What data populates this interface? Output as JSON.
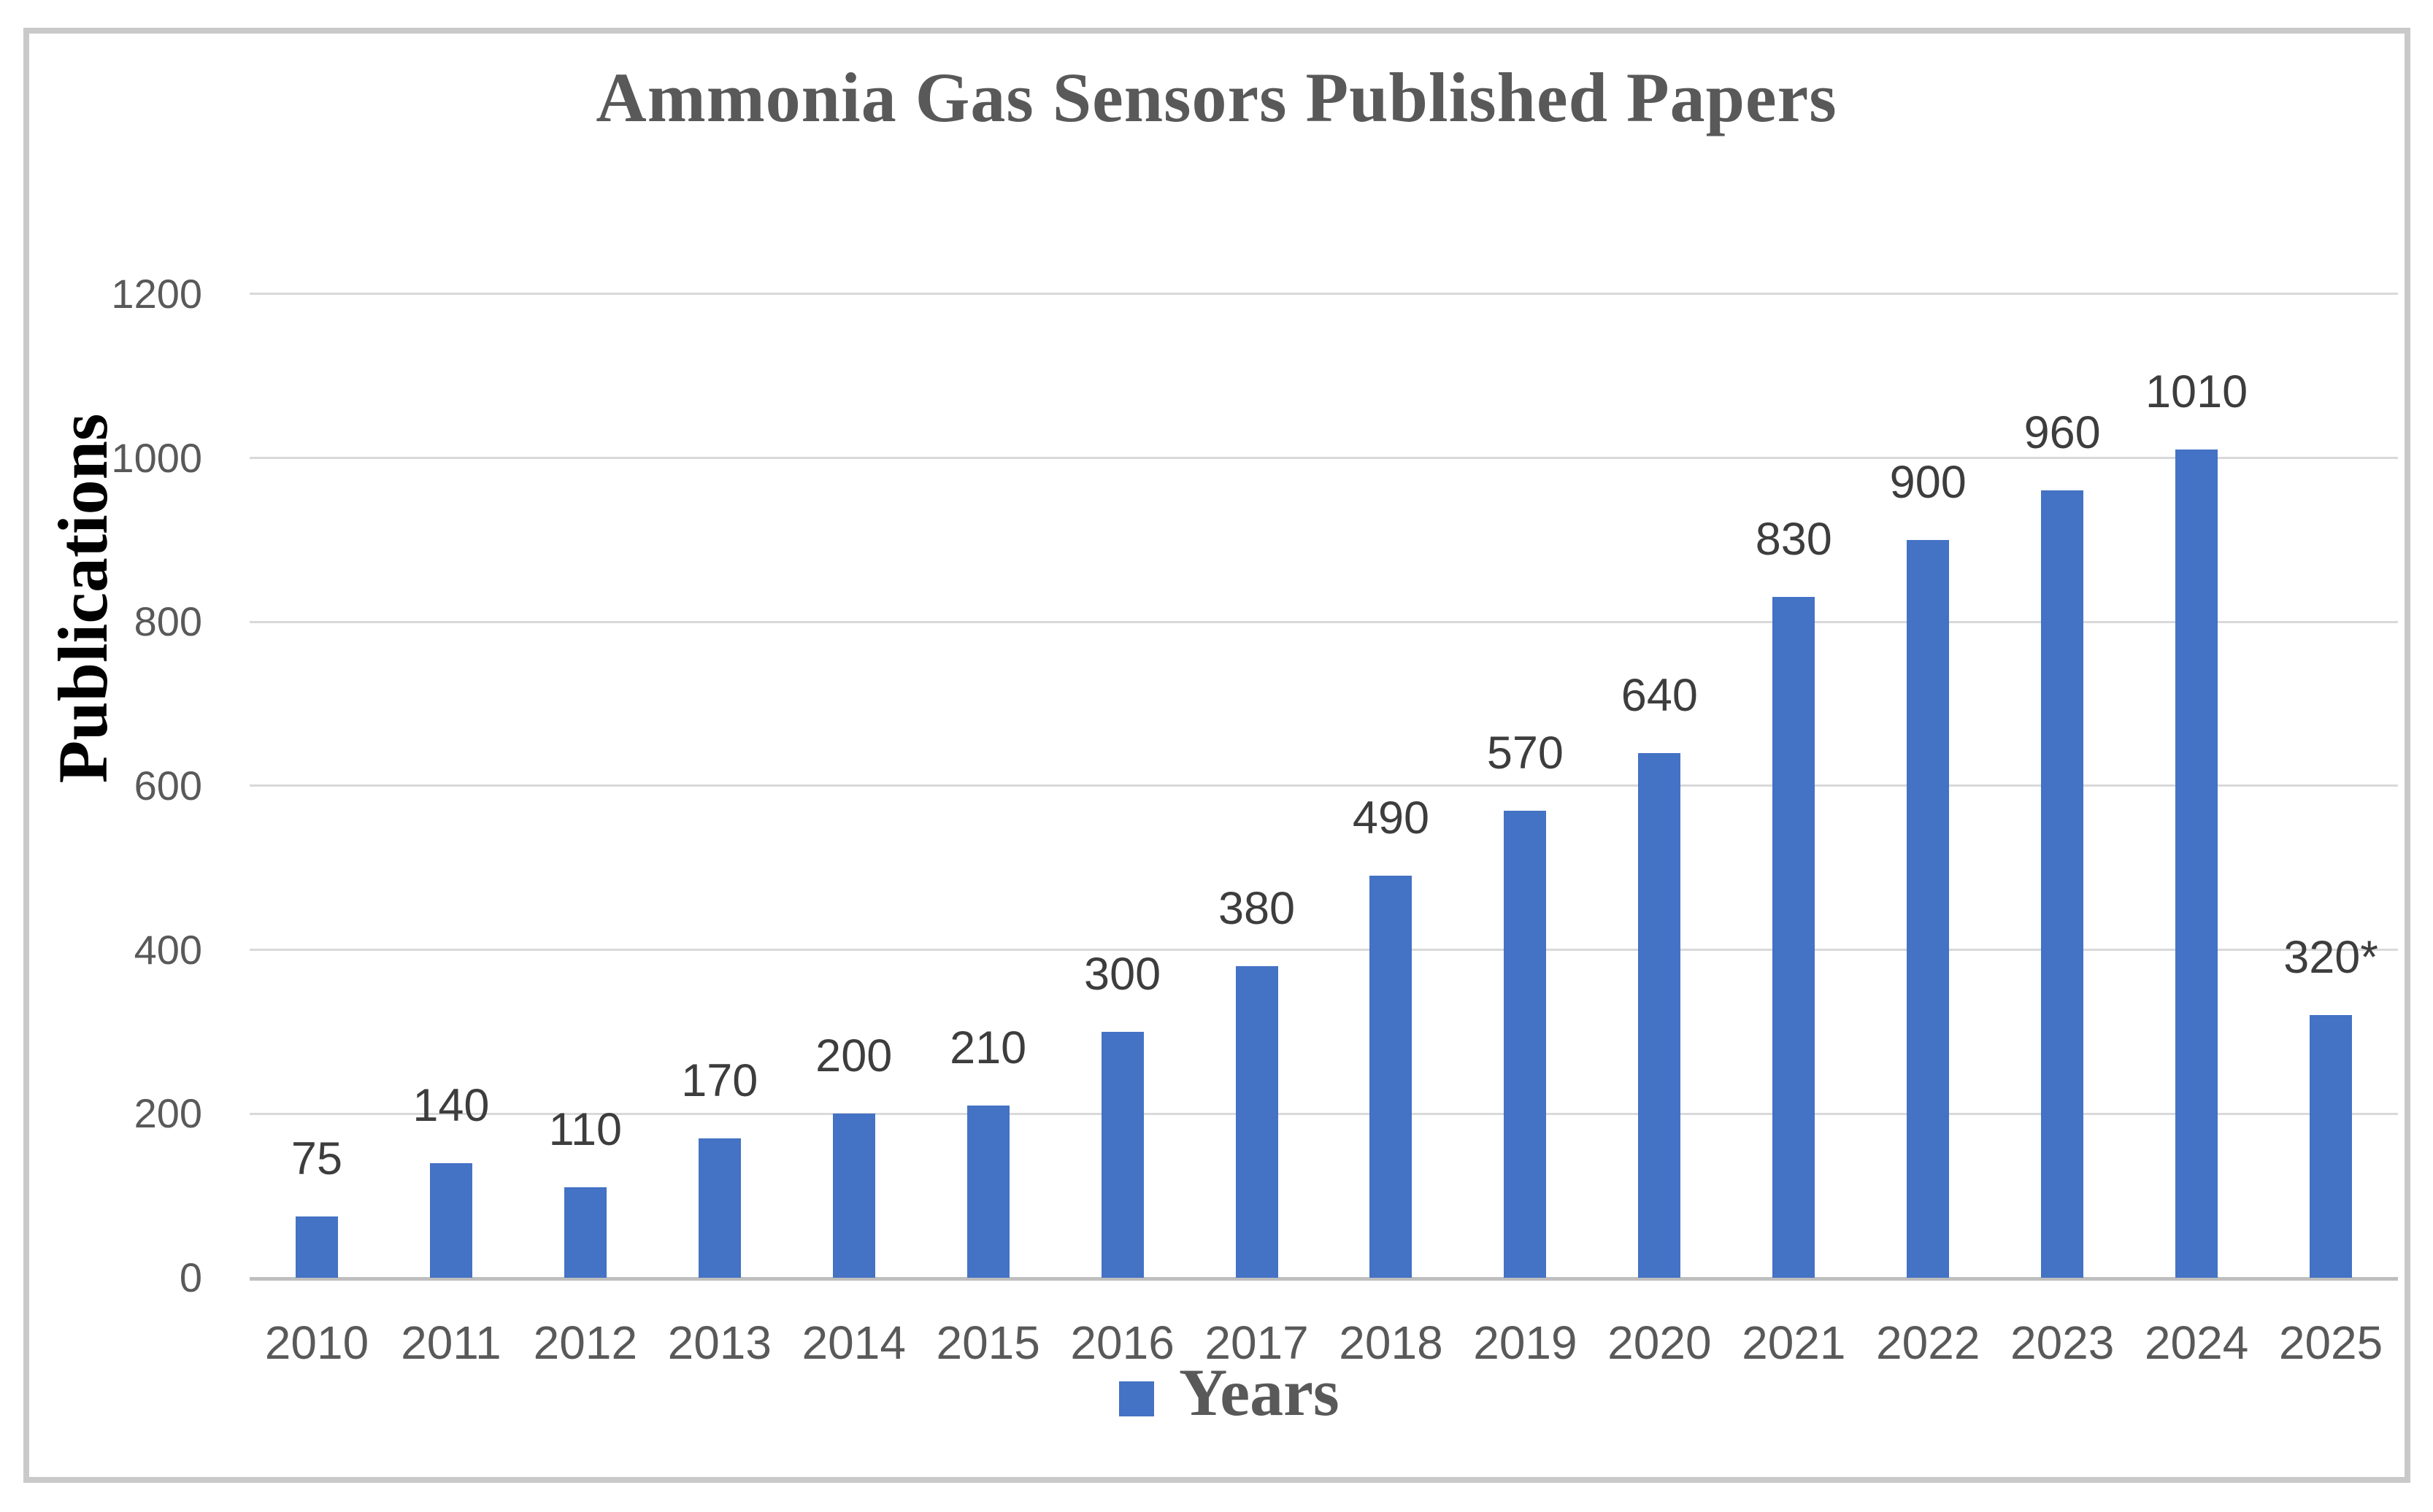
{
  "chart_data": {
    "type": "bar",
    "title": "Ammonia Gas Sensors Published Papers",
    "xlabel": "",
    "ylabel": "Publications",
    "legend": {
      "label": "Years",
      "position": "bottom-center",
      "swatch_color": "#4472c4"
    },
    "categories": [
      "2010",
      "2011",
      "2012",
      "2013",
      "2014",
      "2015",
      "2016",
      "2017",
      "2018",
      "2019",
      "2020",
      "2021",
      "2022",
      "2023",
      "2024",
      "2025"
    ],
    "values": [
      75,
      140,
      110,
      170,
      200,
      210,
      300,
      380,
      490,
      570,
      640,
      830,
      900,
      960,
      1010,
      320
    ],
    "value_labels": [
      "75",
      "140",
      "110",
      "170",
      "200",
      "210",
      "300",
      "380",
      "490",
      "570",
      "640",
      "830",
      "900",
      "960",
      "1010",
      "320*"
    ],
    "ylim": [
      0,
      1200
    ],
    "yticks": [
      0,
      200,
      400,
      600,
      800,
      1000,
      1200
    ],
    "grid": "horizontal",
    "colors": {
      "bar": "#4472c4",
      "gridline": "#d9d9d9",
      "axis_line": "#bfbfbf",
      "frame_border": "#c9c9c9",
      "title_text": "#595959",
      "tick_text": "#595959",
      "value_label_text": "#3d3d3d",
      "y_title_text": "#000000"
    }
  }
}
